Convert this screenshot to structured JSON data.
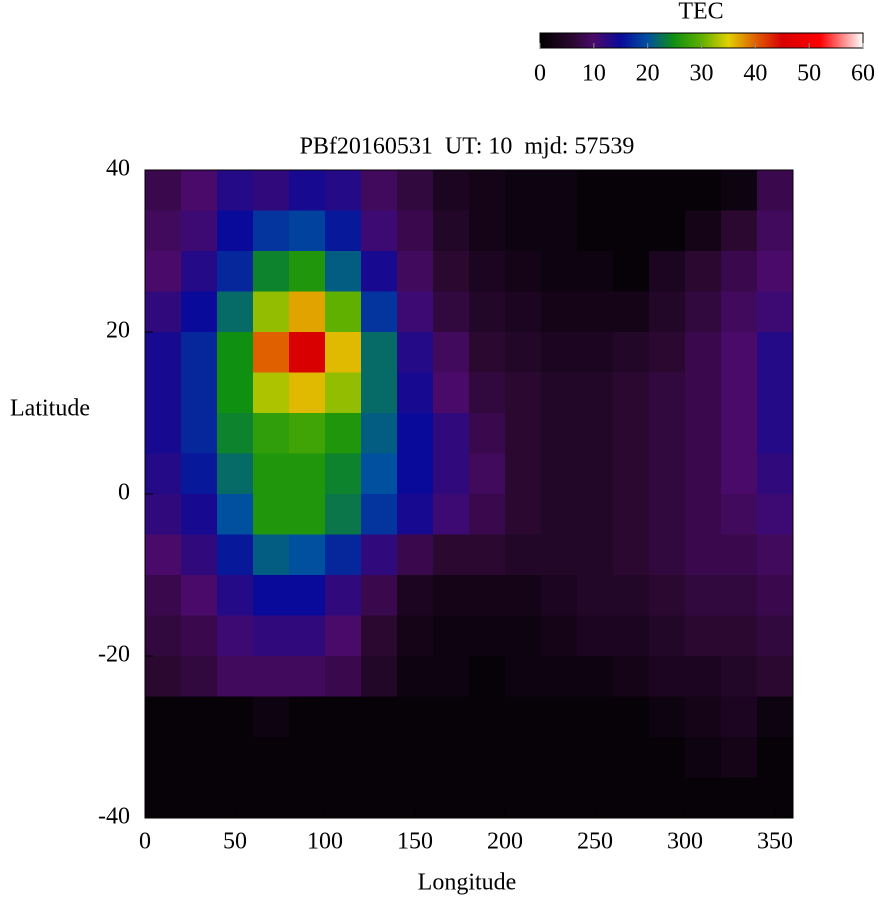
{
  "chart_data": {
    "type": "heatmap",
    "title": "PBf20160531  UT: 10  mjd: 57539",
    "xlabel": "Longitude",
    "ylabel": "Latitude",
    "colorbar_label": "TEC",
    "x": [
      10,
      30,
      50,
      70,
      90,
      110,
      130,
      150,
      170,
      190,
      210,
      230,
      250,
      270,
      290,
      310,
      330,
      350
    ],
    "y": [
      37.5,
      32.5,
      27.5,
      22.5,
      17.5,
      12.5,
      7.5,
      2.5,
      -2.5,
      -7.5,
      -12.5,
      -17.5,
      -22.5,
      -27.5,
      -32.5,
      -37.5
    ],
    "values": [
      [
        8,
        10,
        13,
        12,
        14,
        13,
        9,
        7,
        4,
        3,
        2,
        2,
        1,
        1,
        1,
        1,
        2,
        8
      ],
      [
        9,
        11,
        15,
        18,
        19,
        16,
        11,
        8,
        5,
        3,
        2,
        2,
        1,
        1,
        1,
        3,
        6,
        9
      ],
      [
        10,
        13,
        17,
        24,
        26,
        21,
        14,
        9,
        6,
        4,
        3,
        2,
        2,
        1,
        4,
        6,
        8,
        10
      ],
      [
        12,
        15,
        22,
        32,
        37,
        30,
        18,
        11,
        7,
        5,
        4,
        3,
        3,
        3,
        5,
        7,
        9,
        11
      ],
      [
        14,
        17,
        25,
        40,
        45,
        36,
        22,
        13,
        9,
        6,
        5,
        4,
        4,
        5,
        6,
        8,
        10,
        13
      ],
      [
        14,
        17,
        25,
        33,
        36,
        32,
        22,
        14,
        10,
        7,
        6,
        5,
        5,
        6,
        7,
        8,
        10,
        13
      ],
      [
        14,
        17,
        24,
        27,
        28,
        26,
        21,
        15,
        12,
        8,
        6,
        5,
        5,
        6,
        7,
        8,
        10,
        13
      ],
      [
        13,
        16,
        22,
        26,
        26,
        24,
        20,
        15,
        12,
        9,
        6,
        5,
        5,
        6,
        7,
        8,
        10,
        12
      ],
      [
        12,
        14,
        20,
        26,
        26,
        23,
        18,
        14,
        11,
        8,
        6,
        5,
        5,
        6,
        7,
        8,
        9,
        11
      ],
      [
        10,
        12,
        16,
        21,
        20,
        17,
        12,
        8,
        6,
        6,
        5,
        5,
        5,
        6,
        7,
        8,
        8,
        9
      ],
      [
        8,
        10,
        13,
        15,
        15,
        12,
        8,
        4,
        3,
        3,
        3,
        4,
        5,
        5,
        6,
        7,
        7,
        8
      ],
      [
        7,
        8,
        11,
        12,
        12,
        10,
        6,
        3,
        2,
        2,
        2,
        3,
        4,
        4,
        5,
        6,
        6,
        7
      ],
      [
        6,
        7,
        9,
        9,
        9,
        8,
        5,
        2,
        2,
        1,
        2,
        2,
        2,
        3,
        4,
        4,
        5,
        6
      ],
      [
        1,
        1,
        1,
        2,
        1,
        1,
        1,
        1,
        1,
        1,
        1,
        1,
        1,
        1,
        2,
        3,
        4,
        2
      ],
      [
        1,
        1,
        1,
        1,
        1,
        1,
        1,
        1,
        1,
        1,
        1,
        1,
        1,
        1,
        1,
        2,
        3,
        1
      ],
      [
        1,
        1,
        1,
        1,
        1,
        1,
        1,
        1,
        1,
        1,
        1,
        1,
        1,
        1,
        1,
        1,
        1,
        1
      ]
    ],
    "xlim": [
      0,
      360
    ],
    "xticks": [
      0,
      50,
      100,
      150,
      200,
      250,
      300,
      350
    ],
    "ylim": [
      -40,
      40
    ],
    "yticks": [
      -40,
      -20,
      0,
      20,
      40
    ],
    "clim": [
      0,
      60
    ],
    "cticks": [
      0,
      10,
      20,
      30,
      40,
      50,
      60
    ],
    "colorscale": [
      {
        "value": 0,
        "color": "#000000"
      },
      {
        "value": 6,
        "color": "#2a0830"
      },
      {
        "value": 10,
        "color": "#4a0a6a"
      },
      {
        "value": 15,
        "color": "#0a0a9a"
      },
      {
        "value": 20,
        "color": "#0050a0"
      },
      {
        "value": 25,
        "color": "#109010"
      },
      {
        "value": 30,
        "color": "#60b000"
      },
      {
        "value": 35,
        "color": "#e0d000"
      },
      {
        "value": 40,
        "color": "#e06000"
      },
      {
        "value": 45,
        "color": "#d80000"
      },
      {
        "value": 52,
        "color": "#ff0000"
      },
      {
        "value": 60,
        "color": "#ffffff"
      }
    ]
  }
}
